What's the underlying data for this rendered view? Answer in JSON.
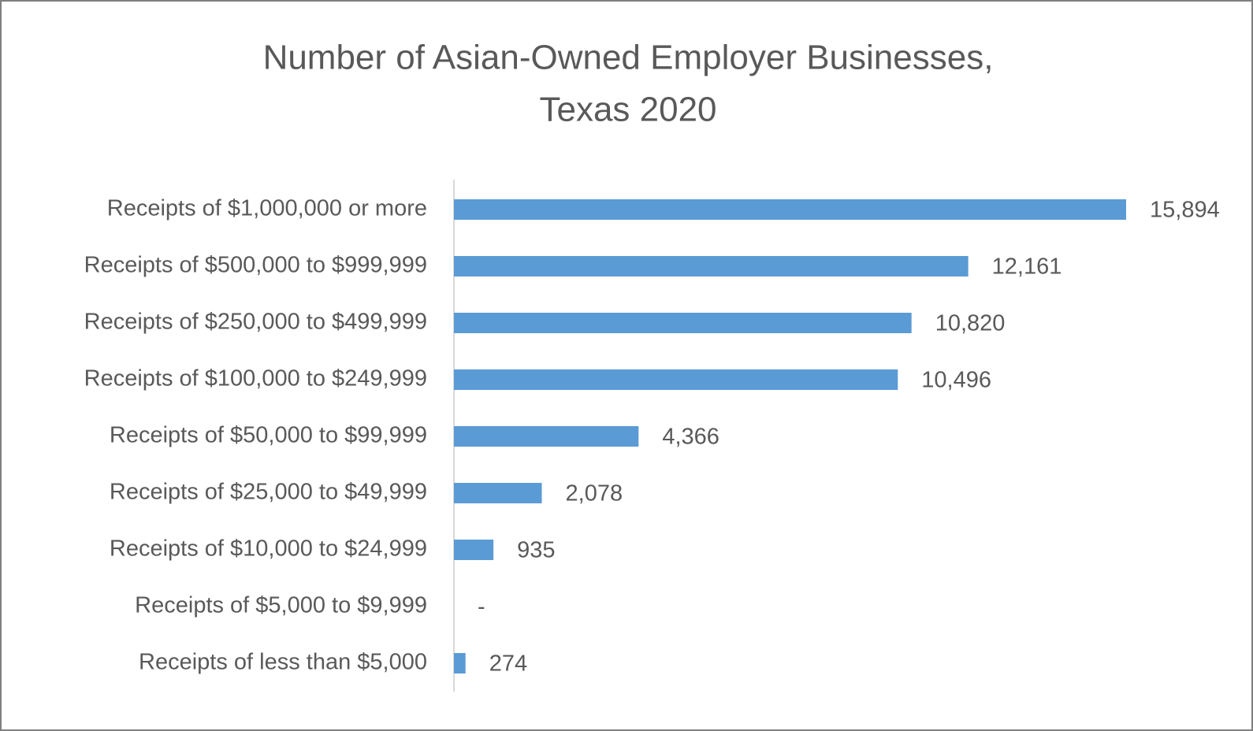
{
  "chart_data": {
    "type": "bar",
    "orientation": "horizontal",
    "title": [
      "Number of Asian-Owned Employer Businesses,",
      "Texas 2020"
    ],
    "categories": [
      "Receipts of $1,000,000 or more",
      "Receipts of $500,000 to $999,999",
      "Receipts of $250,000 to $499,999",
      "Receipts of $100,000 to $249,999",
      "Receipts of $50,000 to $99,999",
      "Receipts of $25,000 to $49,999",
      "Receipts of $10,000 to $24,999",
      "Receipts of $5,000 to $9,999",
      "Receipts of less than $5,000"
    ],
    "values": [
      15894,
      12161,
      10820,
      10496,
      4366,
      2078,
      935,
      0,
      274
    ],
    "value_labels": [
      "15,894",
      "12,161",
      "10,820",
      "10,496",
      "4,366",
      "2,078",
      "935",
      "-",
      "274"
    ],
    "color": "#5b9bd5"
  }
}
